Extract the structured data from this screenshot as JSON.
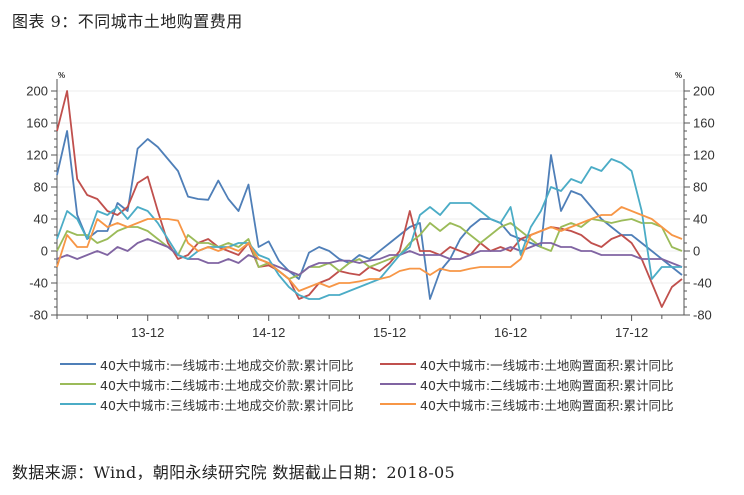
{
  "figure": {
    "title": "图表 9：不同城市土地购置费用",
    "source": "数据来源：Wind，朝阳永续研究院  数据截止日期：2018-05"
  },
  "chart_data": {
    "type": "line",
    "title": "不同城市土地购置费用",
    "xlabel": "",
    "ylabel": "%",
    "y2label": "%",
    "ylim": [
      -80,
      200
    ],
    "y2lim": [
      -80,
      200
    ],
    "yticks": [
      -80,
      -40,
      0,
      40,
      80,
      120,
      160,
      200
    ],
    "grid": true,
    "legend_position": "bottom",
    "x_start": "2013-03",
    "x_end": "2018-05",
    "frequency": "monthly",
    "xtick_labels": [
      "13-12",
      "14-12",
      "15-12",
      "16-12",
      "17-12"
    ],
    "x": [
      "13-03",
      "13-04",
      "13-05",
      "13-06",
      "13-07",
      "13-08",
      "13-09",
      "13-10",
      "13-11",
      "13-12",
      "14-01",
      "14-02",
      "14-03",
      "14-04",
      "14-05",
      "14-06",
      "14-07",
      "14-08",
      "14-09",
      "14-10",
      "14-11",
      "14-12",
      "15-01",
      "15-02",
      "15-03",
      "15-04",
      "15-05",
      "15-06",
      "15-07",
      "15-08",
      "15-09",
      "15-10",
      "15-11",
      "15-12",
      "16-01",
      "16-02",
      "16-03",
      "16-04",
      "16-05",
      "16-06",
      "16-07",
      "16-08",
      "16-09",
      "16-10",
      "16-11",
      "16-12",
      "17-01",
      "17-02",
      "17-03",
      "17-04",
      "17-05",
      "17-06",
      "17-07",
      "17-08",
      "17-09",
      "17-10",
      "17-11",
      "17-12",
      "18-01",
      "18-02",
      "18-03",
      "18-04",
      "18-05"
    ],
    "series": [
      {
        "name": "40大中城市:一线城市:土地成交价款:累计同比",
        "color": "#4f7fb8",
        "values": [
          95,
          150,
          45,
          15,
          25,
          25,
          60,
          50,
          128,
          140,
          130,
          115,
          100,
          68,
          65,
          64,
          88,
          65,
          50,
          83,
          5,
          12,
          -12,
          -25,
          -35,
          -2,
          5,
          0,
          -10,
          -15,
          -5,
          -10,
          0,
          10,
          20,
          30,
          35,
          -60,
          -25,
          -10,
          15,
          30,
          40,
          40,
          35,
          20,
          15,
          10,
          5,
          120,
          50,
          75,
          70,
          55,
          40,
          30,
          20,
          20,
          10,
          0,
          -10,
          -20,
          -30
        ]
      },
      {
        "name": "40大中城市:一线城市:土地购置面积:累计同比",
        "color": "#c0504d",
        "values": [
          150,
          200,
          90,
          70,
          65,
          50,
          45,
          55,
          85,
          93,
          50,
          10,
          -10,
          -5,
          10,
          15,
          5,
          0,
          -5,
          10,
          -20,
          -18,
          -25,
          -35,
          -60,
          -55,
          -40,
          -35,
          -25,
          -28,
          -30,
          -20,
          -25,
          -15,
          0,
          50,
          0,
          0,
          -5,
          5,
          0,
          -5,
          10,
          0,
          5,
          0,
          15,
          20,
          25,
          30,
          28,
          25,
          20,
          10,
          5,
          15,
          20,
          10,
          -10,
          -40,
          -70,
          -45,
          -35
        ]
      },
      {
        "name": "40大中城市:二线城市:土地成交价款:累计同比",
        "color": "#9bbb59",
        "values": [
          0,
          25,
          20,
          20,
          10,
          15,
          25,
          30,
          30,
          25,
          15,
          5,
          -5,
          20,
          10,
          10,
          5,
          10,
          5,
          15,
          -20,
          -15,
          -25,
          -35,
          -30,
          -20,
          -20,
          -15,
          -25,
          -15,
          -10,
          -20,
          -15,
          -10,
          -5,
          10,
          20,
          35,
          25,
          35,
          30,
          20,
          10,
          20,
          30,
          35,
          25,
          15,
          5,
          0,
          30,
          35,
          30,
          40,
          38,
          35,
          38,
          40,
          35,
          35,
          30,
          5,
          0
        ]
      },
      {
        "name": "40大中城市:二线城市:土地购置面积:累计同比",
        "color": "#8064a2",
        "values": [
          -10,
          -5,
          -10,
          -5,
          0,
          -5,
          5,
          0,
          10,
          15,
          10,
          5,
          -5,
          -10,
          -10,
          -15,
          -15,
          -10,
          -15,
          -5,
          -10,
          -15,
          -20,
          -25,
          -30,
          -20,
          -15,
          -15,
          -12,
          -12,
          -15,
          -12,
          -10,
          -5,
          -5,
          0,
          -5,
          -5,
          -5,
          -10,
          -10,
          -5,
          0,
          0,
          0,
          5,
          0,
          5,
          10,
          10,
          5,
          5,
          0,
          0,
          -5,
          -5,
          -5,
          -5,
          -10,
          -10,
          -10,
          -15,
          -20
        ]
      },
      {
        "name": "40大中城市:三线城市:土地成交价款:累计同比",
        "color": "#4bacc6",
        "values": [
          15,
          50,
          40,
          15,
          50,
          45,
          55,
          40,
          55,
          50,
          35,
          15,
          -5,
          -10,
          0,
          5,
          5,
          5,
          10,
          10,
          -5,
          -10,
          -30,
          -45,
          -55,
          -60,
          -60,
          -55,
          -55,
          -50,
          -45,
          -40,
          -35,
          -20,
          -5,
          5,
          45,
          55,
          45,
          60,
          60,
          60,
          50,
          40,
          35,
          55,
          -5,
          30,
          50,
          80,
          75,
          90,
          85,
          105,
          100,
          115,
          110,
          100,
          50,
          -35,
          -20,
          -20,
          -20
        ]
      },
      {
        "name": "40大中城市:三线城市:土地购置面积:累计同比",
        "color": "#f79646",
        "values": [
          -20,
          20,
          5,
          5,
          40,
          30,
          35,
          30,
          35,
          40,
          40,
          40,
          38,
          10,
          0,
          5,
          0,
          5,
          0,
          10,
          -10,
          -15,
          -25,
          -35,
          -50,
          -45,
          -40,
          -45,
          -40,
          -40,
          -38,
          -35,
          -35,
          -32,
          -25,
          -22,
          -22,
          -30,
          -22,
          -25,
          -25,
          -22,
          -20,
          -20,
          -20,
          -20,
          -10,
          20,
          25,
          30,
          25,
          30,
          35,
          40,
          45,
          45,
          55,
          50,
          45,
          40,
          30,
          20,
          15
        ]
      }
    ]
  },
  "legend": {
    "items": [
      {
        "label": "40大中城市:一线城市:土地成交价款:累计同比",
        "color": "#4f7fb8"
      },
      {
        "label": "40大中城市:一线城市:土地购置面积:累计同比",
        "color": "#c0504d"
      },
      {
        "label": "40大中城市:二线城市:土地成交价款:累计同比",
        "color": "#9bbb59"
      },
      {
        "label": "40大中城市:二线城市:土地购置面积:累计同比",
        "color": "#8064a2"
      },
      {
        "label": "40大中城市:三线城市:土地成交价款:累计同比",
        "color": "#4bacc6"
      },
      {
        "label": "40大中城市:三线城市:土地购置面积:累计同比",
        "color": "#f79646"
      }
    ]
  }
}
